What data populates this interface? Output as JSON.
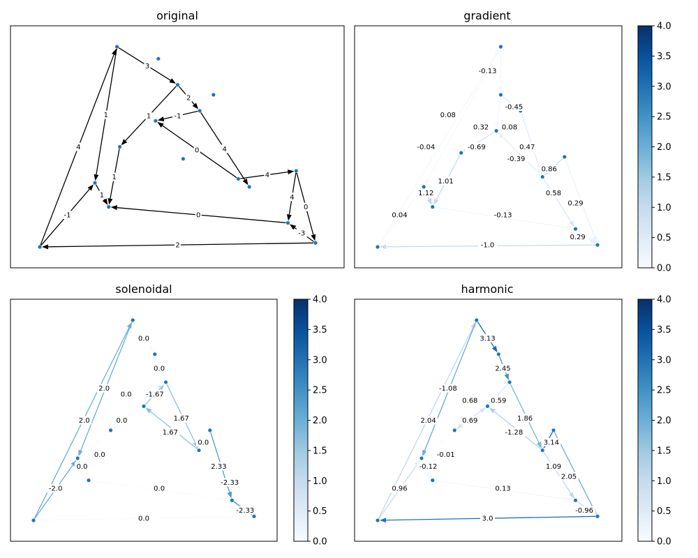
{
  "chart_data": [
    {
      "type": "network",
      "title": "original",
      "colorbar": false,
      "nodes": [
        [
          0,
          0
        ],
        [
          0.28,
          1
        ],
        [
          0.43,
          0.94
        ],
        [
          0.5,
          0.81
        ],
        [
          0.58,
          0.68
        ],
        [
          0.63,
          0.76
        ],
        [
          0.42,
          0.63
        ],
        [
          0.29,
          0.5
        ],
        [
          0.52,
          0.44
        ],
        [
          0.72,
          0.34
        ],
        [
          0.76,
          0.3
        ],
        [
          0.93,
          0.38
        ],
        [
          0.9,
          0.12
        ],
        [
          1,
          0.02
        ],
        [
          0.2,
          0.32
        ],
        [
          0.25,
          0.2
        ]
      ],
      "edges": [
        {
          "from": 0,
          "to": 1,
          "label": "4"
        },
        {
          "from": 1,
          "to": 14,
          "label": "1"
        },
        {
          "from": 1,
          "to": 3,
          "label": "3"
        },
        {
          "from": 3,
          "to": 4,
          "label": "2"
        },
        {
          "from": 4,
          "to": 6,
          "label": "-1"
        },
        {
          "from": 3,
          "to": 7,
          "label": "1"
        },
        {
          "from": 4,
          "to": 10,
          "label": "4"
        },
        {
          "from": 9,
          "to": 6,
          "label": "0"
        },
        {
          "from": 7,
          "to": 15,
          "label": "1"
        },
        {
          "from": 0,
          "to": 14,
          "label": "-1"
        },
        {
          "from": 14,
          "to": 15,
          "label": "1"
        },
        {
          "from": 9,
          "to": 11,
          "label": "4"
        },
        {
          "from": 11,
          "to": 12,
          "label": "4"
        },
        {
          "from": 13,
          "to": 12,
          "label": "-3"
        },
        {
          "from": 11,
          "to": 13,
          "label": "0"
        },
        {
          "from": 12,
          "to": 15,
          "label": "0"
        },
        {
          "from": 13,
          "to": 0,
          "label": "2"
        }
      ]
    },
    {
      "type": "network",
      "title": "gradient",
      "colorbar": true,
      "colorbar_range": [
        0,
        4
      ],
      "colorbar_ticks": [
        "0.0",
        "0.5",
        "1.0",
        "1.5",
        "2.0",
        "2.5",
        "3.0",
        "3.5",
        "4.0"
      ],
      "nodes": [
        [
          0,
          0
        ],
        [
          0.56,
          1
        ],
        [
          0.56,
          0.76
        ],
        [
          0.65,
          0.68
        ],
        [
          0.54,
          0.58
        ],
        [
          0.38,
          0.47
        ],
        [
          0.21,
          0.3
        ],
        [
          0.25,
          0.2
        ],
        [
          0.75,
          0.35
        ],
        [
          0.85,
          0.45
        ],
        [
          0.9,
          0.09
        ],
        [
          1,
          0.01
        ]
      ],
      "edges": [
        {
          "from": 1,
          "to": 2,
          "label": "-0.13",
          "value": 0.13,
          "label_pos": [
            0.5,
            0.88
          ]
        },
        {
          "from": 2,
          "to": 3,
          "label": "-0.45",
          "value": 0.45,
          "label_pos": [
            0.62,
            0.7
          ]
        },
        {
          "from": 0,
          "to": 1,
          "label": "0.08",
          "value": 0.08,
          "label_pos": [
            0.32,
            0.66
          ]
        },
        {
          "from": 4,
          "to": 5,
          "label": "0.32",
          "value": 0.32,
          "label_pos": [
            0.47,
            0.6
          ]
        },
        {
          "from": 2,
          "to": 4,
          "label": "0.08",
          "value": 0.08,
          "label_pos": [
            0.6,
            0.6
          ]
        },
        {
          "from": 4,
          "to": 5,
          "label": "-0.69",
          "value": 0.69,
          "label_pos": [
            0.45,
            0.5
          ]
        },
        {
          "from": 3,
          "to": 8,
          "label": "0.47",
          "value": 0.47,
          "label_pos": [
            0.68,
            0.5
          ]
        },
        {
          "from": 8,
          "to": 4,
          "label": "-0.39",
          "value": 0.39,
          "label_pos": [
            0.63,
            0.44
          ]
        },
        {
          "from": 1,
          "to": 6,
          "label": "-0.04",
          "value": 0.04,
          "label_pos": [
            0.22,
            0.5
          ]
        },
        {
          "from": 9,
          "to": 8,
          "label": "0.86",
          "value": 0.86,
          "label_pos": [
            0.78,
            0.39
          ]
        },
        {
          "from": 5,
          "to": 7,
          "label": "1.01",
          "value": 1.01,
          "label_pos": [
            0.31,
            0.33
          ]
        },
        {
          "from": 6,
          "to": 7,
          "label": "1.12",
          "value": 1.12,
          "label_pos": [
            0.22,
            0.27
          ]
        },
        {
          "from": 8,
          "to": 10,
          "label": "0.58",
          "value": 0.58,
          "label_pos": [
            0.8,
            0.27
          ]
        },
        {
          "from": 9,
          "to": 11,
          "label": "0.29",
          "value": 0.29,
          "label_pos": [
            0.9,
            0.22
          ]
        },
        {
          "from": 0,
          "to": 6,
          "label": "0.04",
          "value": 0.04,
          "label_pos": [
            0.1,
            0.16
          ]
        },
        {
          "from": 7,
          "to": 10,
          "label": "-0.13",
          "value": 0.13,
          "label_pos": [
            0.57,
            0.16
          ]
        },
        {
          "from": 10,
          "to": 11,
          "label": "0.29",
          "value": 0.29,
          "label_pos": [
            0.91,
            0.05
          ]
        },
        {
          "from": 11,
          "to": 0,
          "label": "-1.0",
          "value": 1.0,
          "label_pos": [
            0.5,
            0.01
          ]
        }
      ]
    },
    {
      "type": "network",
      "title": "solenoidal",
      "colorbar": true,
      "colorbar_range": [
        0,
        4
      ],
      "colorbar_ticks": [
        "0.0",
        "0.5",
        "1.0",
        "1.5",
        "2.0",
        "2.5",
        "3.0",
        "3.5",
        "4.0"
      ],
      "nodes": [
        [
          0,
          0
        ],
        [
          0.45,
          1
        ],
        [
          0.55,
          0.83
        ],
        [
          0.6,
          0.69
        ],
        [
          0.5,
          0.57
        ],
        [
          0.35,
          0.45
        ],
        [
          0.2,
          0.31
        ],
        [
          0.25,
          0.2
        ],
        [
          0.75,
          0.35
        ],
        [
          0.8,
          0.45
        ],
        [
          0.9,
          0.1
        ],
        [
          1,
          0.02
        ]
      ],
      "edges": [
        {
          "from": 1,
          "to": 2,
          "label": "0.0",
          "value": 0.0,
          "label_pos": [
            0.5,
            0.91
          ]
        },
        {
          "from": 2,
          "to": 3,
          "label": "0.0",
          "value": 0.0,
          "label_pos": [
            0.57,
            0.76
          ]
        },
        {
          "from": 0,
          "to": 1,
          "label": "2.0",
          "value": 2.0,
          "label_pos": [
            0.32,
            0.66
          ]
        },
        {
          "from": 4,
          "to": 3,
          "label": "-1.67",
          "value": 1.67,
          "label_pos": [
            0.55,
            0.63
          ]
        },
        {
          "from": 3,
          "to": 8,
          "label": "1.67",
          "value": 1.67,
          "label_pos": [
            0.67,
            0.51
          ]
        },
        {
          "from": 8,
          "to": 4,
          "label": "1.67",
          "value": 1.67,
          "label_pos": [
            0.62,
            0.44
          ]
        },
        {
          "from": 3,
          "to": 5,
          "label": "0.0",
          "value": 0.0,
          "label_pos": [
            0.42,
            0.63
          ]
        },
        {
          "from": 4,
          "to": 5,
          "label": "0.0",
          "value": 0.0,
          "label_pos": [
            0.4,
            0.5
          ]
        },
        {
          "from": 1,
          "to": 6,
          "label": "2.0",
          "value": 2.0,
          "label_pos": [
            0.23,
            0.5
          ]
        },
        {
          "from": 9,
          "to": 8,
          "label": "0.0",
          "value": 0.0,
          "label_pos": [
            0.77,
            0.39
          ]
        },
        {
          "from": 5,
          "to": 6,
          "label": "0.0",
          "value": 0.0,
          "label_pos": [
            0.3,
            0.33
          ]
        },
        {
          "from": 6,
          "to": 7,
          "label": "0.0",
          "value": 0.0,
          "label_pos": [
            0.22,
            0.27
          ]
        },
        {
          "from": 9,
          "to": 10,
          "label": "2.33",
          "value": 2.33,
          "label_pos": [
            0.84,
            0.27
          ]
        },
        {
          "from": 10,
          "to": 11,
          "label": "-2.33",
          "value": 2.33,
          "label_pos": [
            0.89,
            0.19
          ]
        },
        {
          "from": 0,
          "to": 6,
          "label": "-2.0",
          "value": 2.0,
          "label_pos": [
            0.1,
            0.16
          ]
        },
        {
          "from": 7,
          "to": 10,
          "label": "0.0",
          "value": 0.0,
          "label_pos": [
            0.57,
            0.16
          ]
        },
        {
          "from": 10,
          "to": 11,
          "label": "-2.33",
          "value": 2.33,
          "label_pos": [
            0.96,
            0.05
          ]
        },
        {
          "from": 11,
          "to": 0,
          "label": "0.0",
          "value": 0.0,
          "label_pos": [
            0.5,
            0.01
          ]
        }
      ]
    },
    {
      "type": "network",
      "title": "harmonic",
      "colorbar": true,
      "colorbar_range": [
        0,
        4
      ],
      "colorbar_ticks": [
        "0.0",
        "0.5",
        "1.0",
        "1.5",
        "2.0",
        "2.5",
        "3.0",
        "3.5",
        "4.0"
      ],
      "nodes": [
        [
          0,
          0
        ],
        [
          0.45,
          1
        ],
        [
          0.55,
          0.83
        ],
        [
          0.6,
          0.69
        ],
        [
          0.5,
          0.57
        ],
        [
          0.35,
          0.45
        ],
        [
          0.2,
          0.31
        ],
        [
          0.25,
          0.2
        ],
        [
          0.75,
          0.35
        ],
        [
          0.8,
          0.45
        ],
        [
          0.9,
          0.1
        ],
        [
          1,
          0.02
        ]
      ],
      "edges": [
        {
          "from": 1,
          "to": 2,
          "label": "3.13",
          "value": 3.13,
          "label_pos": [
            0.5,
            0.91
          ]
        },
        {
          "from": 2,
          "to": 3,
          "label": "2.45",
          "value": 2.45,
          "label_pos": [
            0.57,
            0.76
          ]
        },
        {
          "from": 0,
          "to": 1,
          "label": "-1.08",
          "value": 1.08,
          "label_pos": [
            0.32,
            0.66
          ]
        },
        {
          "from": 5,
          "to": 4,
          "label": "0.68",
          "value": 0.68,
          "label_pos": [
            0.42,
            0.6
          ]
        },
        {
          "from": 3,
          "to": 4,
          "label": "0.59",
          "value": 0.59,
          "label_pos": [
            0.55,
            0.6
          ]
        },
        {
          "from": 4,
          "to": 5,
          "label": "0.69",
          "value": 0.69,
          "label_pos": [
            0.42,
            0.5
          ]
        },
        {
          "from": 3,
          "to": 8,
          "label": "1.86",
          "value": 1.86,
          "label_pos": [
            0.67,
            0.51
          ]
        },
        {
          "from": 8,
          "to": 4,
          "label": "-1.28",
          "value": 1.28,
          "label_pos": [
            0.62,
            0.44
          ]
        },
        {
          "from": 1,
          "to": 6,
          "label": "2.04",
          "value": 2.04,
          "label_pos": [
            0.23,
            0.5
          ]
        },
        {
          "from": 9,
          "to": 8,
          "label": "3.14",
          "value": 3.14,
          "label_pos": [
            0.79,
            0.39
          ]
        },
        {
          "from": 5,
          "to": 6,
          "label": "-0.01",
          "value": 0.01,
          "label_pos": [
            0.31,
            0.33
          ]
        },
        {
          "from": 6,
          "to": 7,
          "label": "-0.12",
          "value": 0.12,
          "label_pos": [
            0.23,
            0.27
          ]
        },
        {
          "from": 8,
          "to": 10,
          "label": "1.09",
          "value": 1.09,
          "label_pos": [
            0.8,
            0.27
          ]
        },
        {
          "from": 9,
          "to": 11,
          "label": "2.05",
          "value": 2.05,
          "label_pos": [
            0.87,
            0.22
          ]
        },
        {
          "from": 0,
          "to": 6,
          "label": "0.96",
          "value": 0.96,
          "label_pos": [
            0.1,
            0.16
          ]
        },
        {
          "from": 7,
          "to": 10,
          "label": "0.13",
          "value": 0.13,
          "label_pos": [
            0.57,
            0.16
          ]
        },
        {
          "from": 10,
          "to": 11,
          "label": "-0.96",
          "value": 0.96,
          "label_pos": [
            0.94,
            0.05
          ]
        },
        {
          "from": 11,
          "to": 0,
          "label": "3.0",
          "value": 3.0,
          "label_pos": [
            0.5,
            0.01
          ]
        }
      ]
    }
  ]
}
